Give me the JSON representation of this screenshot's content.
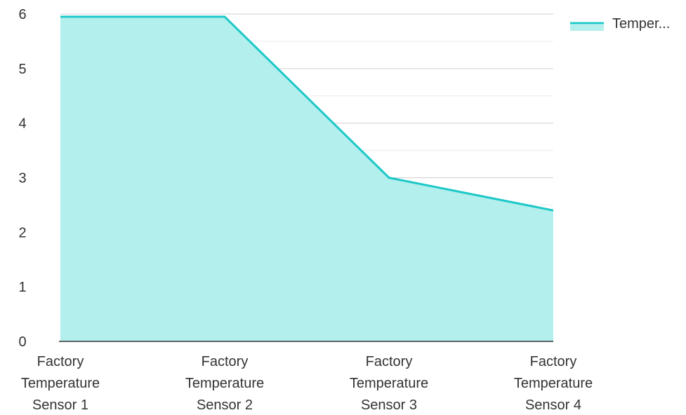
{
  "chart_data": {
    "type": "area",
    "categories": [
      [
        "Factory",
        "Temperature",
        "Sensor 1"
      ],
      [
        "Factory",
        "Temperature",
        "Sensor 2"
      ],
      [
        "Factory",
        "Temperature",
        "Sensor 3"
      ],
      [
        "Factory",
        "Temperature",
        "Sensor 4"
      ]
    ],
    "series": [
      {
        "name": "Temper...",
        "values": [
          5.95,
          5.95,
          3.0,
          2.4
        ]
      }
    ],
    "ylim": [
      0,
      6
    ],
    "yticks": [
      "0",
      "1",
      "2",
      "3",
      "4",
      "5",
      "6"
    ],
    "grid": true,
    "legend_position": "top-right",
    "colors": {
      "line": "#1ec8c8",
      "fill": "#b2efed",
      "grid": "#d6d6d6",
      "axis": "#333333"
    }
  }
}
